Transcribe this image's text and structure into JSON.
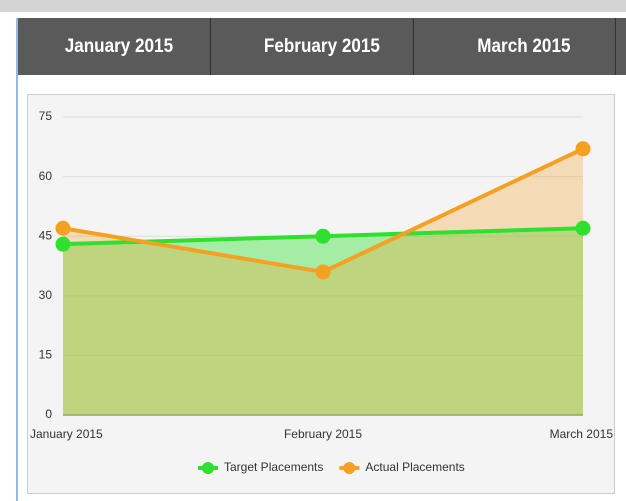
{
  "header": {
    "columns": [
      "January 2015",
      "February 2015",
      "March 2015"
    ]
  },
  "chart_data": {
    "type": "area-line",
    "categories": [
      "January 2015",
      "February 2015",
      "March 2015"
    ],
    "series": [
      {
        "name": "Target Placements",
        "color": "#2fe02f",
        "values": [
          43,
          45,
          47
        ]
      },
      {
        "name": "Actual Placements",
        "color": "#f5a023",
        "values": [
          47,
          36,
          67
        ]
      }
    ],
    "ylim": [
      0,
      75
    ],
    "yticks": [
      0,
      15,
      30,
      45,
      60,
      75
    ],
    "grid": true,
    "legend": "bottom"
  }
}
